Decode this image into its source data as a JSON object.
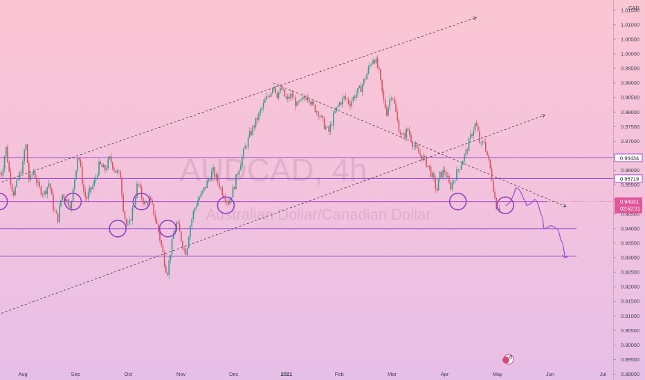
{
  "chart_data": {
    "type": "line",
    "symbol_watermark": "AUDCAD, 4h",
    "description_watermark": "Australian Dollar/Canadian Dollar",
    "currency": "CAD",
    "ylim": [
      0.888,
      1.0185
    ],
    "y_ticks": [
      "1.01500",
      "1.01000",
      "1.00500",
      "1.00000",
      "0.99500",
      "0.99000",
      "0.98500",
      "0.98000",
      "0.97500",
      "0.97000",
      "0.96500",
      "0.96000",
      "0.95500",
      "0.95000",
      "0.94500",
      "0.94000",
      "0.93500",
      "0.93000",
      "0.92500",
      "0.92000",
      "0.91500",
      "0.91000",
      "0.90500",
      "0.90000",
      "0.89500",
      "0.89000"
    ],
    "x_ticks": [
      {
        "label": "Aug",
        "x": 1,
        "bold": false
      },
      {
        "label": "Sep",
        "x": 2,
        "bold": false
      },
      {
        "label": "Oct",
        "x": 3,
        "bold": false
      },
      {
        "label": "Nov",
        "x": 4,
        "bold": false
      },
      {
        "label": "Dec",
        "x": 5,
        "bold": false
      },
      {
        "label": "2021",
        "x": 6,
        "bold": true
      },
      {
        "label": "Feb",
        "x": 7,
        "bold": false
      },
      {
        "label": "Mar",
        "x": 8,
        "bold": false
      },
      {
        "label": "Apr",
        "x": 9,
        "bold": false
      },
      {
        "label": "May",
        "x": 10,
        "bold": false
      },
      {
        "label": "Jun",
        "x": 11,
        "bold": false
      },
      {
        "label": "Jul",
        "x": 12,
        "bold": false
      }
    ],
    "price_series": [
      [
        0.6,
        0.959
      ],
      [
        0.68,
        0.968
      ],
      [
        0.75,
        0.958
      ],
      [
        0.82,
        0.952
      ],
      [
        0.9,
        0.956
      ],
      [
        1.0,
        0.962
      ],
      [
        1.05,
        0.97
      ],
      [
        1.12,
        0.956
      ],
      [
        1.2,
        0.96
      ],
      [
        1.3,
        0.954
      ],
      [
        1.4,
        0.952
      ],
      [
        1.5,
        0.956
      ],
      [
        1.58,
        0.947
      ],
      [
        1.66,
        0.943
      ],
      [
        1.74,
        0.952
      ],
      [
        1.82,
        0.95
      ],
      [
        1.92,
        0.948
      ],
      [
        2.0,
        0.96
      ],
      [
        2.05,
        0.966
      ],
      [
        2.1,
        0.96
      ],
      [
        2.15,
        0.953
      ],
      [
        2.2,
        0.95
      ],
      [
        2.28,
        0.953
      ],
      [
        2.36,
        0.956
      ],
      [
        2.45,
        0.962
      ],
      [
        2.55,
        0.96
      ],
      [
        2.65,
        0.964
      ],
      [
        2.75,
        0.96
      ],
      [
        2.85,
        0.958
      ],
      [
        2.9,
        0.948
      ],
      [
        2.95,
        0.942
      ],
      [
        3.0,
        0.94
      ],
      [
        3.05,
        0.944
      ],
      [
        3.12,
        0.95
      ],
      [
        3.18,
        0.956
      ],
      [
        3.25,
        0.951
      ],
      [
        3.32,
        0.948
      ],
      [
        3.4,
        0.95
      ],
      [
        3.46,
        0.947
      ],
      [
        3.52,
        0.943
      ],
      [
        3.58,
        0.938
      ],
      [
        3.64,
        0.933
      ],
      [
        3.7,
        0.927
      ],
      [
        3.74,
        0.925
      ],
      [
        3.8,
        0.932
      ],
      [
        3.86,
        0.938
      ],
      [
        3.92,
        0.942
      ],
      [
        3.98,
        0.938
      ],
      [
        4.05,
        0.933
      ],
      [
        4.1,
        0.932
      ],
      [
        4.16,
        0.94
      ],
      [
        4.24,
        0.946
      ],
      [
        4.32,
        0.95
      ],
      [
        4.4,
        0.952
      ],
      [
        4.5,
        0.956
      ],
      [
        4.6,
        0.96
      ],
      [
        4.7,
        0.956
      ],
      [
        4.8,
        0.952
      ],
      [
        4.9,
        0.949
      ],
      [
        5.0,
        0.954
      ],
      [
        5.08,
        0.96
      ],
      [
        5.15,
        0.964
      ],
      [
        5.22,
        0.968
      ],
      [
        5.3,
        0.972
      ],
      [
        5.4,
        0.976
      ],
      [
        5.5,
        0.98
      ],
      [
        5.6,
        0.984
      ],
      [
        5.7,
        0.987
      ],
      [
        5.75,
        0.99
      ],
      [
        5.82,
        0.986
      ],
      [
        5.9,
        0.988
      ],
      [
        6.0,
        0.984
      ],
      [
        6.1,
        0.986
      ],
      [
        6.2,
        0.982
      ],
      [
        6.3,
        0.984
      ],
      [
        6.4,
        0.986
      ],
      [
        6.5,
        0.982
      ],
      [
        6.6,
        0.98
      ],
      [
        6.7,
        0.976
      ],
      [
        6.8,
        0.973
      ],
      [
        6.9,
        0.979
      ],
      [
        7.0,
        0.983
      ],
      [
        7.1,
        0.985
      ],
      [
        7.2,
        0.983
      ],
      [
        7.3,
        0.986
      ],
      [
        7.4,
        0.988
      ],
      [
        7.5,
        0.992
      ],
      [
        7.58,
        0.996
      ],
      [
        7.65,
        0.999
      ],
      [
        7.7,
        0.997
      ],
      [
        7.75,
        0.994
      ],
      [
        7.8,
        0.988
      ],
      [
        7.85,
        0.983
      ],
      [
        7.9,
        0.98
      ],
      [
        7.95,
        0.984
      ],
      [
        8.0,
        0.987
      ],
      [
        8.06,
        0.981
      ],
      [
        8.12,
        0.975
      ],
      [
        8.2,
        0.971
      ],
      [
        8.3,
        0.974
      ],
      [
        8.4,
        0.969
      ],
      [
        8.5,
        0.966
      ],
      [
        8.6,
        0.964
      ],
      [
        8.7,
        0.961
      ],
      [
        8.8,
        0.956
      ],
      [
        8.85,
        0.953
      ],
      [
        8.9,
        0.958
      ],
      [
        9.0,
        0.96
      ],
      [
        9.1,
        0.954
      ],
      [
        9.2,
        0.958
      ],
      [
        9.3,
        0.962
      ],
      [
        9.4,
        0.966
      ],
      [
        9.5,
        0.972
      ],
      [
        9.58,
        0.976
      ],
      [
        9.62,
        0.974
      ],
      [
        9.68,
        0.968
      ],
      [
        9.75,
        0.97
      ],
      [
        9.82,
        0.964
      ],
      [
        9.88,
        0.959
      ],
      [
        9.93,
        0.953
      ],
      [
        9.97,
        0.948
      ],
      [
        10.02,
        0.947
      ],
      [
        10.06,
        0.9493
      ]
    ],
    "horizontal_levels": [
      {
        "price": 0.9643,
        "x_end": 12.5,
        "tag": "0.96434",
        "tag_color": "#ffffff"
      },
      {
        "price": 0.95719,
        "x_end": 12.5,
        "tag": "0.95719",
        "tag_color": "#ffffff"
      },
      {
        "price": 0.9493,
        "x_end": 10.95,
        "tag": "",
        "tag_color": ""
      },
      {
        "price": 0.94,
        "x_end": 11.5,
        "tag": "",
        "tag_color": ""
      },
      {
        "price": 0.9305,
        "x_end": 11.5,
        "tag": "",
        "tag_color": ""
      }
    ],
    "trend_lines": [
      {
        "from": [
          0.6,
          0.956
        ],
        "to": [
          9.6,
          1.0125
        ]
      },
      {
        "from": [
          0.0,
          0.907
        ],
        "to": [
          10.9,
          0.979
        ]
      },
      {
        "from": [
          5.75,
          0.99
        ],
        "to": [
          11.3,
          0.9475
        ]
      }
    ],
    "circles": [
      [
        0.55,
        0.9493
      ],
      [
        1.95,
        0.9493
      ],
      [
        2.8,
        0.94
      ],
      [
        3.25,
        0.9493
      ],
      [
        3.75,
        0.94
      ],
      [
        4.85,
        0.948
      ],
      [
        9.25,
        0.9493
      ],
      [
        10.15,
        0.948
      ]
    ],
    "projection": [
      [
        10.15,
        0.948
      ],
      [
        10.35,
        0.954
      ],
      [
        10.5,
        0.95
      ],
      [
        10.55,
        0.948
      ],
      [
        10.7,
        0.95
      ],
      [
        10.82,
        0.945
      ],
      [
        10.88,
        0.94
      ],
      [
        11.0,
        0.941
      ],
      [
        11.12,
        0.94
      ],
      [
        11.2,
        0.936
      ],
      [
        11.28,
        0.93
      ]
    ],
    "current_price": {
      "price": 0.9493,
      "label": "0.94931",
      "countdown": "02:52:31",
      "color": "#e0579a"
    },
    "level_color": "#9b4fd6",
    "trend_color": "#333333",
    "candle_up": "#2c9e8a",
    "candle_down": "#d7505e",
    "event_badge": "8"
  }
}
